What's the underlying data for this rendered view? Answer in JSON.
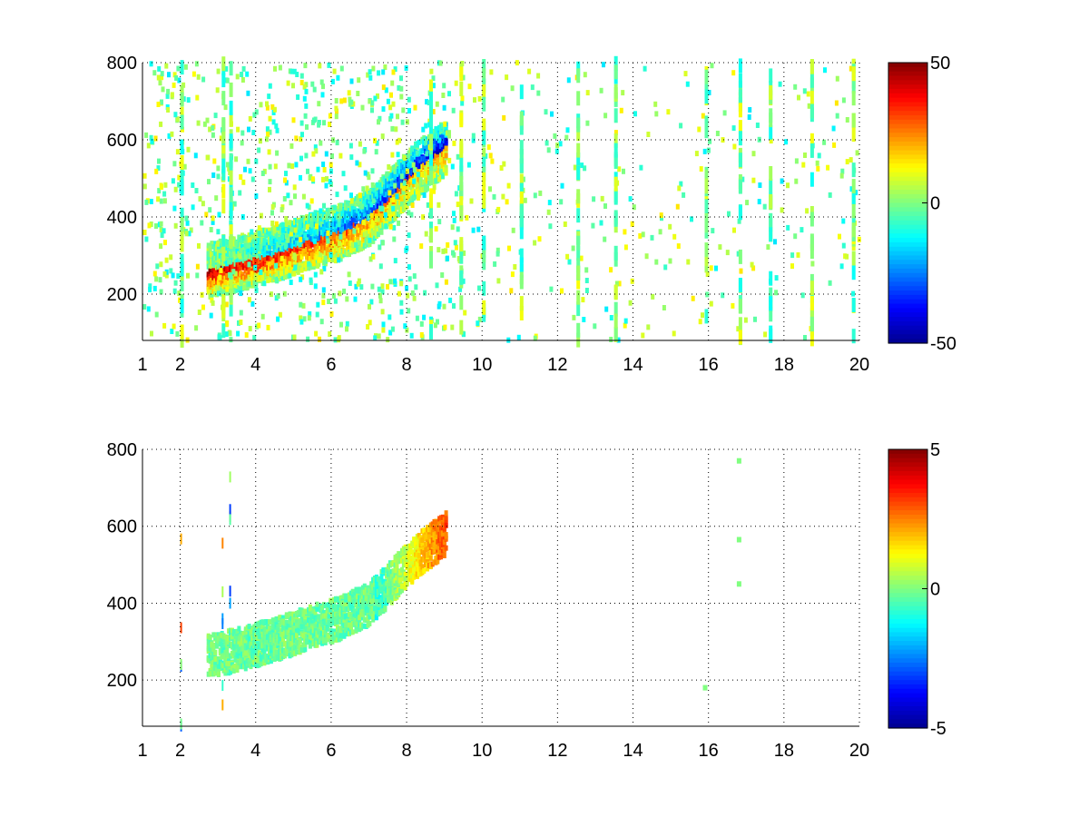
{
  "figure": {
    "background": "#ffffff"
  },
  "colormap": [
    "#00008f",
    "#0000ff",
    "#0080ff",
    "#00ffff",
    "#80ff80",
    "#ffff00",
    "#ff8000",
    "#ff0000",
    "#800000"
  ],
  "chart_data": [
    {
      "type": "heatmap",
      "title": "",
      "xlabel": "",
      "ylabel": "",
      "xlim": [
        1,
        20
      ],
      "ylim": [
        80,
        800
      ],
      "xticks": [
        1,
        2,
        4,
        6,
        8,
        10,
        12,
        14,
        16,
        18,
        20
      ],
      "yticks": [
        200,
        400,
        600,
        800
      ],
      "grid": true,
      "colorbar": {
        "position": "right",
        "range": [
          -50,
          50
        ],
        "ticks": [
          50,
          0,
          -50
        ]
      },
      "features": {
        "ridge": {
          "x": [
            2.7,
            3.5,
            4.5,
            5.5,
            6.2,
            7.0,
            7.5,
            8.2,
            9.0
          ],
          "y": [
            260,
            280,
            305,
            340,
            360,
            400,
            450,
            520,
            580
          ]
        },
        "ridge_value_range": [
          -45,
          45
        ],
        "background_noise_value_range": [
          -15,
          15
        ],
        "vertical_stripe_x": [
          2.0,
          3.1,
          3.3,
          8.6,
          9.4,
          10.0,
          11.0,
          12.5,
          13.5,
          15.9,
          16.8,
          17.6,
          18.7,
          19.8
        ]
      }
    },
    {
      "type": "heatmap",
      "title": "",
      "xlabel": "",
      "ylabel": "",
      "xlim": [
        1,
        20
      ],
      "ylim": [
        80,
        800
      ],
      "xticks": [
        1,
        2,
        4,
        6,
        8,
        10,
        12,
        14,
        16,
        18,
        20
      ],
      "yticks": [
        200,
        400,
        600,
        800
      ],
      "grid": true,
      "colorbar": {
        "position": "right",
        "range": [
          -5,
          5
        ],
        "ticks": [
          5,
          0,
          -5
        ]
      },
      "features": {
        "ridge": {
          "x": [
            2.7,
            3.5,
            4.5,
            5.5,
            6.2,
            7.0,
            7.5,
            8.2,
            9.0
          ],
          "y": [
            260,
            280,
            305,
            340,
            360,
            400,
            450,
            520,
            580
          ]
        },
        "ridge_value_range": [
          -1,
          3
        ],
        "isolated_points": [
          [
            16.8,
            770
          ],
          [
            16.8,
            565
          ],
          [
            16.8,
            450
          ],
          [
            15.9,
            180
          ]
        ]
      }
    }
  ]
}
